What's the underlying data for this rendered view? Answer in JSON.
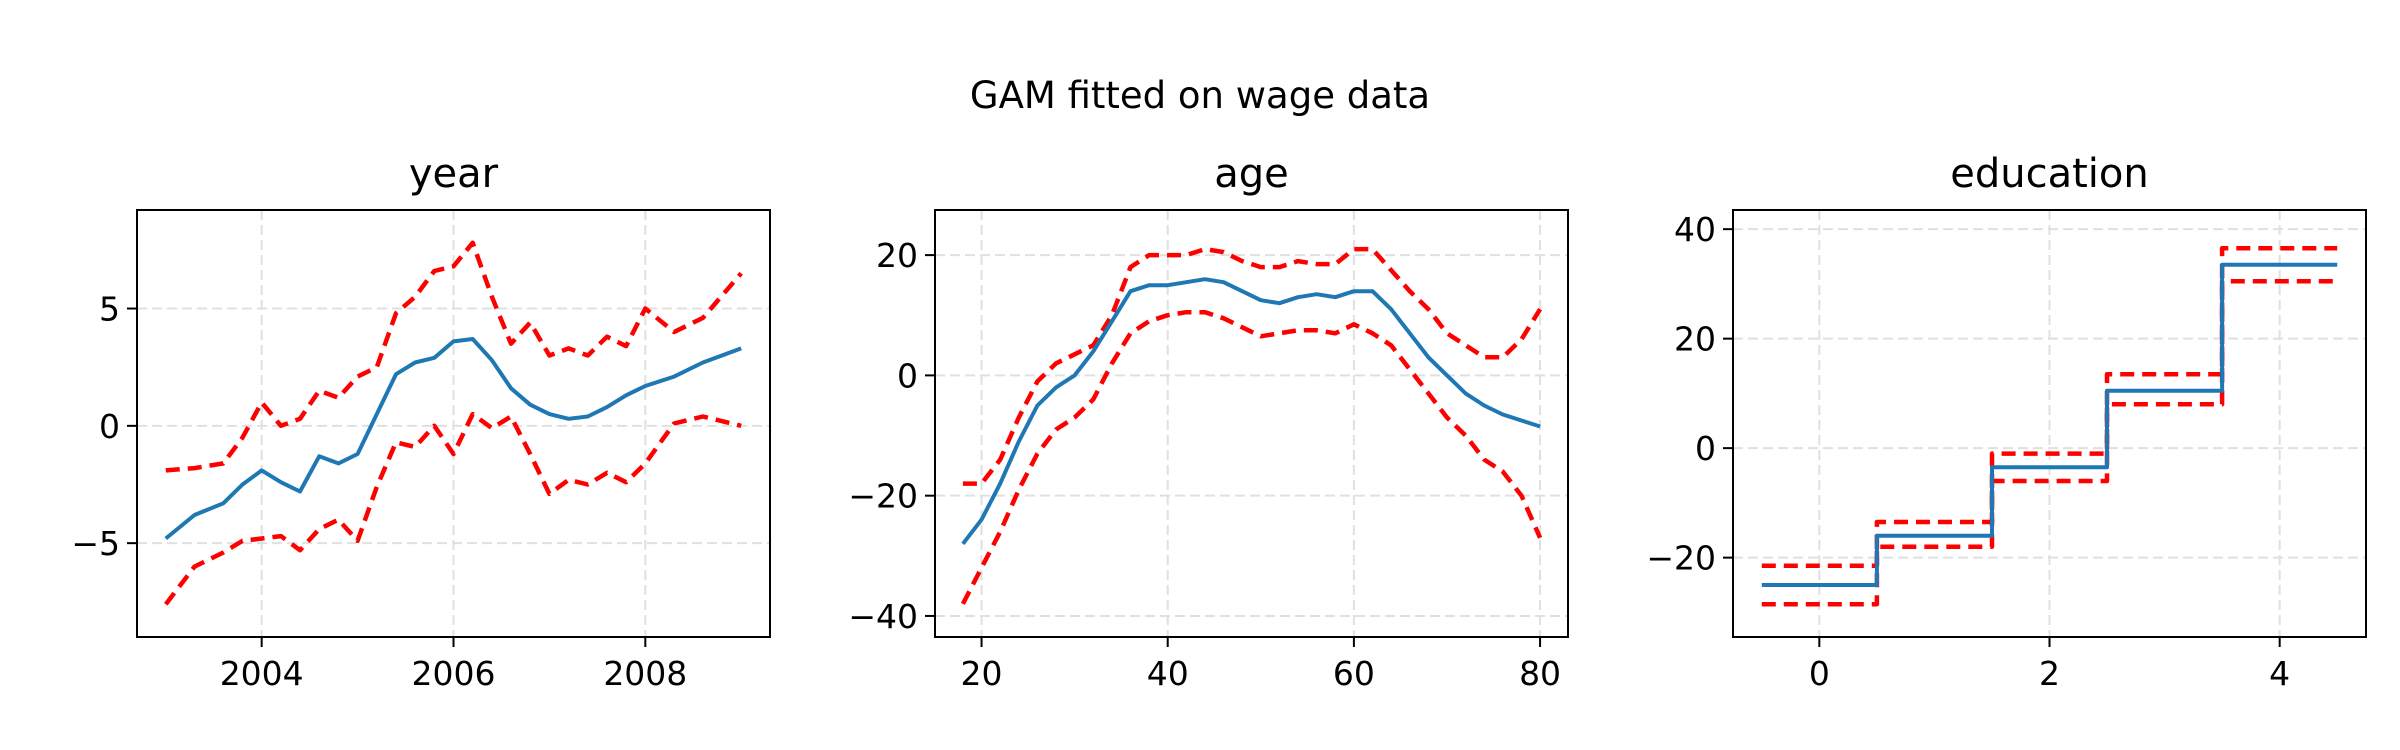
{
  "figure": {
    "suptitle": "GAM fitted on wage data"
  },
  "colors": {
    "fit": "#1f77b4",
    "ci": "#ff0000",
    "grid": "#e0e0e0",
    "axes": "#000000"
  },
  "chart_data": [
    {
      "type": "line",
      "title": "year",
      "xlabel": "",
      "ylabel": "",
      "xlim": [
        2002.7,
        2009.3
      ],
      "ylim": [
        -9.0,
        9.2
      ],
      "xticks": [
        2004,
        2006,
        2008
      ],
      "yticks": [
        -5,
        0,
        5
      ],
      "xtick_labels": [
        "2004",
        "2006",
        "2008"
      ],
      "ytick_labels": [
        "−5",
        "0",
        "5"
      ],
      "grid": true,
      "series": [
        {
          "role": "fit",
          "style": "solid",
          "x": [
            2003.0,
            2003.3,
            2003.6,
            2003.8,
            2004.0,
            2004.2,
            2004.4,
            2004.6,
            2004.8,
            2005.0,
            2005.2,
            2005.4,
            2005.6,
            2005.8,
            2006.0,
            2006.2,
            2006.4,
            2006.6,
            2006.8,
            2007.0,
            2007.2,
            2007.4,
            2007.6,
            2007.8,
            2008.0,
            2008.3,
            2008.6,
            2009.0
          ],
          "y": [
            -4.8,
            -3.8,
            -3.3,
            -2.5,
            -1.9,
            -2.4,
            -2.8,
            -1.3,
            -1.6,
            -1.2,
            0.5,
            2.2,
            2.7,
            2.9,
            3.6,
            3.7,
            2.8,
            1.6,
            0.9,
            0.5,
            0.3,
            0.4,
            0.8,
            1.3,
            1.7,
            2.1,
            2.7,
            3.3
          ]
        },
        {
          "role": "upper",
          "style": "dashed",
          "x": [
            2003.0,
            2003.3,
            2003.6,
            2003.8,
            2004.0,
            2004.2,
            2004.4,
            2004.6,
            2004.8,
            2005.0,
            2005.2,
            2005.4,
            2005.6,
            2005.8,
            2006.0,
            2006.2,
            2006.4,
            2006.6,
            2006.8,
            2007.0,
            2007.2,
            2007.4,
            2007.6,
            2007.8,
            2008.0,
            2008.3,
            2008.6,
            2009.0
          ],
          "y": [
            -1.9,
            -1.8,
            -1.6,
            -0.5,
            1.0,
            0.0,
            0.3,
            1.5,
            1.2,
            2.1,
            2.5,
            4.8,
            5.5,
            6.6,
            6.8,
            7.8,
            5.5,
            3.5,
            4.4,
            3.0,
            3.3,
            3.0,
            3.8,
            3.4,
            5.0,
            4.0,
            4.6,
            6.5
          ]
        },
        {
          "role": "lower",
          "style": "dashed",
          "x": [
            2003.0,
            2003.3,
            2003.6,
            2003.8,
            2004.0,
            2004.2,
            2004.4,
            2004.6,
            2004.8,
            2005.0,
            2005.2,
            2005.4,
            2005.6,
            2005.8,
            2006.0,
            2006.2,
            2006.4,
            2006.6,
            2006.8,
            2007.0,
            2007.2,
            2007.4,
            2007.6,
            2007.8,
            2008.0,
            2008.3,
            2008.6,
            2009.0
          ],
          "y": [
            -7.6,
            -6.0,
            -5.4,
            -4.9,
            -4.8,
            -4.7,
            -5.3,
            -4.4,
            -4.0,
            -4.9,
            -2.6,
            -0.7,
            -0.9,
            0.0,
            -1.2,
            0.5,
            -0.1,
            0.4,
            -1.2,
            -2.9,
            -2.3,
            -2.5,
            -2.0,
            -2.4,
            -1.6,
            0.1,
            0.4,
            0.0
          ]
        }
      ]
    },
    {
      "type": "line",
      "title": "age",
      "xlabel": "",
      "ylabel": "",
      "xlim": [
        15.0,
        83.0
      ],
      "ylim": [
        -43.5,
        27.5
      ],
      "xticks": [
        20,
        40,
        60,
        80
      ],
      "yticks": [
        -40,
        -20,
        0,
        20
      ],
      "xtick_labels": [
        "20",
        "40",
        "60",
        "80"
      ],
      "ytick_labels": [
        "−40",
        "−20",
        "0",
        "20"
      ],
      "grid": true,
      "series": [
        {
          "role": "fit",
          "style": "solid",
          "x": [
            18,
            20,
            22,
            24,
            26,
            28,
            30,
            32,
            34,
            36,
            38,
            40,
            42,
            44,
            46,
            48,
            50,
            52,
            54,
            56,
            58,
            60,
            62,
            64,
            66,
            68,
            70,
            72,
            74,
            76,
            78,
            80
          ],
          "y": [
            -28,
            -24,
            -18,
            -11,
            -5,
            -2,
            0,
            4,
            9,
            14,
            15,
            15,
            15.5,
            16,
            15.5,
            14,
            12.5,
            12,
            13,
            13.5,
            13,
            14,
            14,
            11,
            7,
            3,
            0,
            -3,
            -5,
            -6.5,
            -7.5,
            -8.5
          ]
        },
        {
          "role": "upper",
          "style": "dashed",
          "x": [
            18,
            20,
            22,
            24,
            26,
            28,
            30,
            32,
            34,
            36,
            38,
            40,
            42,
            44,
            46,
            48,
            50,
            52,
            54,
            56,
            58,
            60,
            62,
            64,
            66,
            68,
            70,
            72,
            74,
            76,
            78,
            80
          ],
          "y": [
            -18,
            -18,
            -14,
            -7,
            -1,
            2,
            3.5,
            5,
            10,
            18,
            20,
            20,
            20,
            21,
            20.5,
            19,
            18,
            18,
            19,
            18.5,
            18.5,
            21,
            21,
            17.5,
            14,
            11,
            7,
            5,
            3,
            3,
            6,
            11
          ]
        },
        {
          "role": "lower",
          "style": "dashed",
          "x": [
            18,
            20,
            22,
            24,
            26,
            28,
            30,
            32,
            34,
            36,
            38,
            40,
            42,
            44,
            46,
            48,
            50,
            52,
            54,
            56,
            58,
            60,
            62,
            64,
            66,
            68,
            70,
            72,
            74,
            76,
            78,
            80
          ],
          "y": [
            -38,
            -32,
            -26,
            -19,
            -13,
            -9,
            -7,
            -4,
            2,
            7,
            9,
            10,
            10.5,
            10.5,
            9.5,
            8,
            6.5,
            7,
            7.5,
            7.5,
            7,
            8.5,
            7,
            5,
            1,
            -3,
            -7,
            -10,
            -14,
            -16,
            -20,
            -27
          ]
        }
      ]
    },
    {
      "type": "line",
      "title": "education",
      "xlabel": "",
      "ylabel": "",
      "xlim": [
        -0.75,
        4.75
      ],
      "ylim": [
        -34.5,
        43.5
      ],
      "xticks": [
        0,
        2,
        4
      ],
      "yticks": [
        -20,
        0,
        20,
        40
      ],
      "xtick_labels": [
        "0",
        "2",
        "4"
      ],
      "ytick_labels": [
        "−20",
        "0",
        "20",
        "40"
      ],
      "grid": true,
      "series": [
        {
          "role": "fit",
          "style": "solid",
          "x": [
            -0.5,
            0.5,
            0.5,
            1.5,
            1.5,
            2.5,
            2.5,
            3.5,
            3.5,
            4.5
          ],
          "y": [
            -25,
            -25,
            -16,
            -16,
            -3.5,
            -3.5,
            10.5,
            10.5,
            33.5,
            33.5
          ]
        },
        {
          "role": "upper",
          "style": "dashed",
          "x": [
            -0.5,
            0.5,
            0.5,
            1.5,
            1.5,
            2.5,
            2.5,
            3.5,
            3.5,
            4.5
          ],
          "y": [
            -21.5,
            -21.5,
            -13.5,
            -13.5,
            -1,
            -1,
            13.5,
            13.5,
            36.5,
            36.5
          ]
        },
        {
          "role": "lower",
          "style": "dashed",
          "x": [
            -0.5,
            0.5,
            0.5,
            1.5,
            1.5,
            2.5,
            2.5,
            3.5,
            3.5,
            4.5
          ],
          "y": [
            -28.5,
            -28.5,
            -18,
            -18,
            -6,
            -6,
            8,
            8,
            30.5,
            30.5
          ]
        }
      ]
    }
  ]
}
